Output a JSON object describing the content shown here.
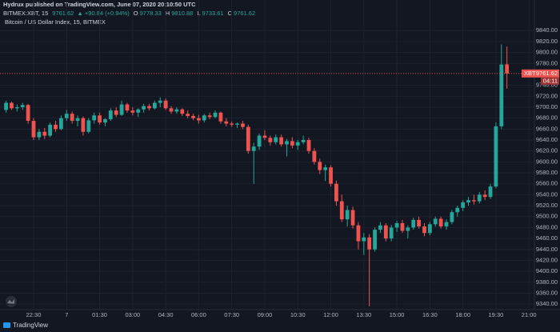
{
  "header": {
    "line1": "Hydrux published on TradingView.com, June 07, 2020 20:10:50 UTC",
    "symbol": "BITMEX:XBT, 15",
    "last": "9761.62",
    "change": "▲ +90.84 (+0.94%)",
    "ohlc": [
      {
        "label": "O",
        "value": "9778.33"
      },
      {
        "label": "H",
        "value": "9810.88"
      },
      {
        "label": "L",
        "value": "9733.61"
      },
      {
        "label": "C",
        "value": "9761.62"
      }
    ]
  },
  "footer": "TradingView",
  "chart_data": {
    "type": "candlestick",
    "title": "Bitcoin / US Dollar Index, 15, BITMEX",
    "up_color": "#26a69a",
    "down_color": "#ef5350",
    "grid": true,
    "price_label": "XBT",
    "countdown": "04:11",
    "categories": [
      null,
      null,
      null,
      null,
      null,
      "22:30",
      null,
      null,
      null,
      null,
      null,
      "7",
      null,
      null,
      null,
      null,
      null,
      "01:30",
      null,
      null,
      null,
      null,
      null,
      "03:00",
      null,
      null,
      null,
      null,
      null,
      "04:30",
      null,
      null,
      null,
      null,
      null,
      "06:00",
      null,
      null,
      null,
      null,
      null,
      "07:30",
      null,
      null,
      null,
      null,
      null,
      "09:00",
      null,
      null,
      null,
      null,
      null,
      "10:30",
      null,
      null,
      null,
      null,
      null,
      "12:00",
      null,
      null,
      null,
      null,
      null,
      "13:30",
      null,
      null,
      null,
      null,
      null,
      "15:00",
      null,
      null,
      null,
      null,
      null,
      "16:30",
      null,
      null,
      null,
      null,
      null,
      "18:00",
      null,
      null,
      null,
      null,
      null,
      "19:30",
      null,
      null,
      null,
      null,
      null,
      "21:00"
    ],
    "open": [
      9695,
      9708,
      9698,
      9700,
      9704,
      9675,
      9645,
      9655,
      9648,
      9668,
      9660,
      9680,
      9688,
      9675,
      9680,
      9655,
      9676,
      9685,
      9672,
      9678,
      9694,
      9686,
      9705,
      9694,
      9690,
      9696,
      9702,
      9698,
      9708,
      9712,
      9698,
      9692,
      9696,
      9688,
      9684,
      9680,
      9676,
      9685,
      9682,
      9690,
      9674,
      9670,
      9668,
      9670,
      9664,
      9620,
      9628,
      9648,
      9644,
      9636,
      9645,
      9632,
      9638,
      9630,
      9636,
      9640,
      9620,
      9600,
      9585,
      9590,
      9560,
      9528,
      9495,
      9512,
      9484,
      9455,
      9462,
      9440,
      9476,
      9484,
      9460,
      9480,
      9488,
      9474,
      9480,
      9494,
      9482,
      9470,
      9486,
      9496,
      9482,
      9490,
      9508,
      9516,
      9526,
      9530,
      9528,
      9540,
      9536,
      9555,
      9665,
      9778.33,
      null,
      null,
      null,
      null
    ],
    "high": [
      9712,
      9710,
      9705,
      9708,
      9706,
      9680,
      9660,
      9662,
      9672,
      9675,
      9685,
      9695,
      9692,
      9685,
      9683,
      9680,
      9690,
      9690,
      9680,
      9698,
      9700,
      9712,
      9708,
      9700,
      9698,
      9706,
      9706,
      9712,
      9718,
      9716,
      9702,
      9700,
      9698,
      9694,
      9688,
      9686,
      9688,
      9690,
      9694,
      9692,
      9680,
      9674,
      9672,
      9675,
      9668,
      9635,
      9652,
      9658,
      9648,
      9650,
      9650,
      9642,
      9645,
      9640,
      9648,
      9644,
      9625,
      9606,
      9595,
      9594,
      9566,
      9540,
      9520,
      9518,
      9490,
      9470,
      9468,
      9480,
      9490,
      9488,
      9485,
      9492,
      9494,
      9484,
      9498,
      9500,
      9488,
      9490,
      9500,
      9500,
      9495,
      9512,
      9520,
      9530,
      9536,
      9540,
      9545,
      9548,
      9560,
      9672,
      9815,
      9810.88,
      null,
      null,
      null,
      null
    ],
    "low": [
      9690,
      9695,
      9692,
      9695,
      9670,
      9640,
      9640,
      9642,
      9645,
      9655,
      9658,
      9675,
      9670,
      9665,
      9648,
      9652,
      9670,
      9668,
      9665,
      9675,
      9682,
      9684,
      9690,
      9685,
      9682,
      9690,
      9694,
      9696,
      9700,
      9695,
      9688,
      9688,
      9684,
      9680,
      9676,
      9670,
      9672,
      9678,
      9680,
      9670,
      9665,
      9664,
      9662,
      9660,
      9615,
      9560,
      9622,
      9640,
      9630,
      9632,
      9628,
      9610,
      9625,
      9622,
      9632,
      9615,
      9595,
      9578,
      9565,
      9555,
      9520,
      9490,
      9482,
      9478,
      9440,
      9430,
      9336,
      9436,
      9470,
      9455,
      9455,
      9472,
      9470,
      9460,
      9476,
      9478,
      9464,
      9466,
      9482,
      9478,
      9476,
      9486,
      9500,
      9510,
      9520,
      9522,
      9524,
      9530,
      9532,
      9552,
      9660,
      9733.61,
      null,
      null,
      null,
      null
    ],
    "close": [
      9708,
      9698,
      9700,
      9704,
      9675,
      9645,
      9655,
      9648,
      9668,
      9660,
      9680,
      9688,
      9675,
      9680,
      9655,
      9676,
      9685,
      9672,
      9678,
      9694,
      9686,
      9705,
      9694,
      9690,
      9696,
      9702,
      9698,
      9708,
      9712,
      9698,
      9692,
      9696,
      9688,
      9684,
      9680,
      9676,
      9685,
      9682,
      9690,
      9674,
      9670,
      9668,
      9670,
      9664,
      9620,
      9628,
      9648,
      9644,
      9636,
      9645,
      9632,
      9638,
      9630,
      9636,
      9640,
      9620,
      9600,
      9585,
      9590,
      9560,
      9528,
      9495,
      9512,
      9484,
      9455,
      9462,
      9440,
      9476,
      9484,
      9460,
      9480,
      9488,
      9474,
      9480,
      9494,
      9482,
      9470,
      9486,
      9496,
      9482,
      9490,
      9508,
      9516,
      9526,
      9530,
      9528,
      9540,
      9536,
      9555,
      9665,
      9778,
      9761.62,
      null,
      null,
      null,
      null
    ],
    "ylim": [
      9330,
      9855
    ],
    "yticks": [
      {
        "value": 9340,
        "label": "9340.00"
      },
      {
        "value": 9360,
        "label": "9360.00"
      },
      {
        "value": 9380,
        "label": "9380.00"
      },
      {
        "value": 9400,
        "label": "9400.00"
      },
      {
        "value": 9420,
        "label": "9420.00"
      },
      {
        "value": 9440,
        "label": "9440.00"
      },
      {
        "value": 9460,
        "label": "9460.00"
      },
      {
        "value": 9480,
        "label": "9480.00"
      },
      {
        "value": 9500,
        "label": "9500.00"
      },
      {
        "value": 9520,
        "label": "9520.00"
      },
      {
        "value": 9540,
        "label": "9540.00"
      },
      {
        "value": 9560,
        "label": "9560.00"
      },
      {
        "value": 9580,
        "label": "9580.00"
      },
      {
        "value": 9600,
        "label": "9600.00"
      },
      {
        "value": 9620,
        "label": "9620.00"
      },
      {
        "value": 9640,
        "label": "9640.00"
      },
      {
        "value": 9660,
        "label": "9660.00"
      },
      {
        "value": 9680,
        "label": "9680.00"
      },
      {
        "value": 9700,
        "label": "9700.00"
      },
      {
        "value": 9720,
        "label": "9720.00"
      },
      {
        "value": 9740,
        "label": "9740.00"
      },
      {
        "value": 9780,
        "label": "9780.00"
      },
      {
        "value": 9800,
        "label": "9800.00"
      },
      {
        "value": 9820,
        "label": "9820.00"
      },
      {
        "value": 9840,
        "label": "9840.00"
      }
    ]
  }
}
